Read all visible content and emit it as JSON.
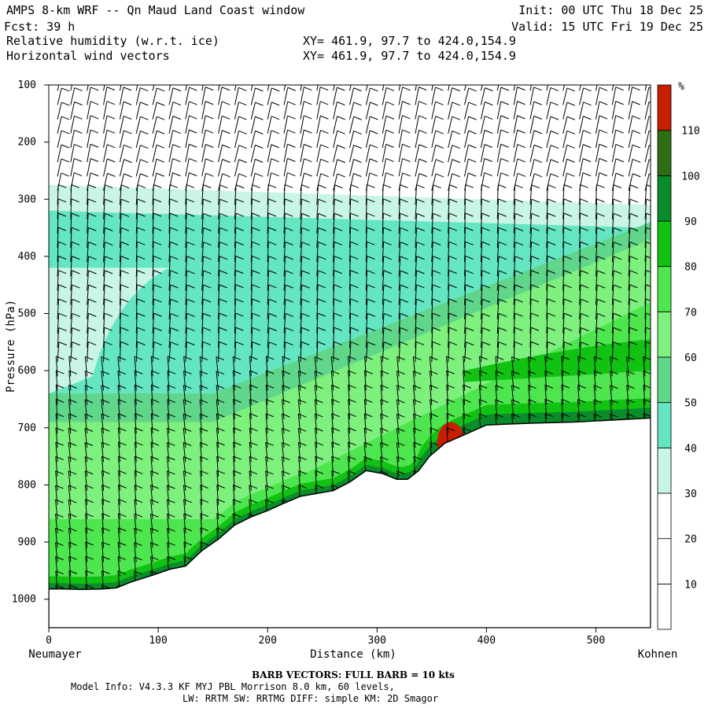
{
  "header": {
    "line1_left": "AMPS 8-km WRF -- Qn Maud Land Coast window",
    "line1_right": "Init: 00 UTC Thu 18 Dec 25",
    "line2_left": "Fcst:   39 h",
    "line2_right": "Valid: 15 UTC Fri 19 Dec 25",
    "line3_left": "Relative humidity (w.r.t. ice)",
    "line3_right": "XY= 461.9, 97.7 to 424.0,154.9",
    "line4_left": "Horizontal wind vectors",
    "line4_right": "XY= 461.9, 97.7 to 424.0,154.9"
  },
  "footer": {
    "barb_note": "BARB VECTORS:  FULL BARB = 10 kts",
    "model_info": "Model Info: V4.3.3   KF      MYJ PBL  Morrison         8.0 km,  60 levels,",
    "physics": "LW: RRTM SW: RRTMG   DIFF: simple KM: 2D Smagor"
  },
  "chart_data": {
    "type": "heatmap",
    "title": "Relative humidity (w.r.t. ice)",
    "xlabel": "Distance (km)",
    "ylabel": "Pressure (hPa)",
    "x_ticks": [
      0,
      100,
      200,
      300,
      400,
      500
    ],
    "y_ticks": [
      100,
      200,
      300,
      400,
      500,
      600,
      700,
      800,
      900,
      1000
    ],
    "xlim": [
      0,
      550
    ],
    "ylim": [
      100,
      1050
    ],
    "x_end_labels": {
      "left": "Neumayer",
      "right": "Kohnen"
    },
    "colorbar": {
      "unit": "%",
      "levels": [
        10,
        20,
        30,
        40,
        50,
        60,
        70,
        80,
        90,
        100,
        110
      ],
      "colors": [
        "#ffffff",
        "#ffffff",
        "#ffffff",
        "#c8f5e6",
        "#64e6c3",
        "#5fd68a",
        "#7df07d",
        "#4ee64e",
        "#12c212",
        "#0a8c2a",
        "#2e6e14",
        "#c81e00"
      ]
    },
    "terrain_surface_hpa": [
      [
        0,
        982
      ],
      [
        12,
        982
      ],
      [
        30,
        983
      ],
      [
        50,
        982
      ],
      [
        62,
        980
      ],
      [
        75,
        970
      ],
      [
        95,
        958
      ],
      [
        110,
        948
      ],
      [
        125,
        942
      ],
      [
        140,
        915
      ],
      [
        155,
        895
      ],
      [
        170,
        870
      ],
      [
        185,
        856
      ],
      [
        200,
        845
      ],
      [
        215,
        832
      ],
      [
        230,
        820
      ],
      [
        245,
        815
      ],
      [
        260,
        810
      ],
      [
        275,
        795
      ],
      [
        290,
        775
      ],
      [
        305,
        780
      ],
      [
        318,
        790
      ],
      [
        328,
        790
      ],
      [
        338,
        775
      ],
      [
        348,
        750
      ],
      [
        362,
        727
      ],
      [
        380,
        712
      ],
      [
        400,
        695
      ],
      [
        440,
        692
      ],
      [
        480,
        690
      ],
      [
        520,
        686
      ],
      [
        550,
        683
      ]
    ],
    "rh_regions": [
      {
        "level": "30-40",
        "top_hpa": 275
      },
      {
        "level": "40-50",
        "top_hpa": 320
      },
      {
        "level": "50-60",
        "top_hpa": 420
      },
      {
        "level": "60-70",
        "top_hpa": 500
      },
      {
        "level": "70-80",
        "top_hpa": 560
      },
      {
        "level": "90-100",
        "near_surface_hpa": 20
      },
      {
        "level": "110+",
        "x_km": [
          355,
          380
        ],
        "p_hpa": [
          690,
          760
        ]
      }
    ],
    "wind_barbs": {
      "x_km": [
        8,
        20,
        35,
        50,
        65,
        80,
        95,
        110,
        125,
        140,
        155,
        170,
        185,
        200,
        215,
        230,
        245,
        260,
        275,
        290,
        305,
        320,
        335,
        350,
        365,
        380,
        395,
        410,
        425,
        440,
        455,
        470,
        485,
        500,
        515,
        530,
        545
      ],
      "p_hpa_step": 25,
      "full_barb_kts": 10
    }
  }
}
